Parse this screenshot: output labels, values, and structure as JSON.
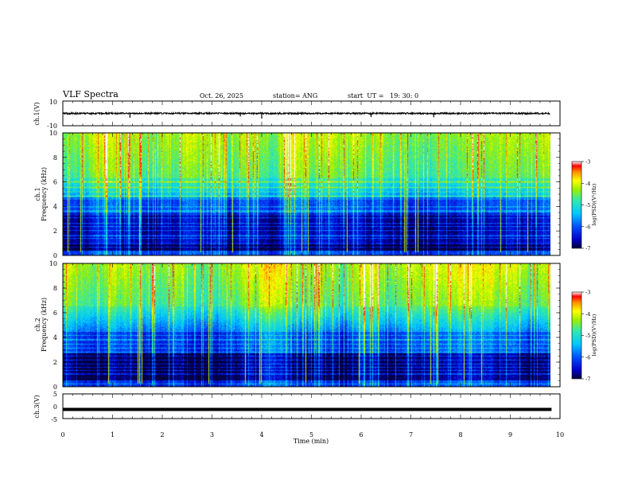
{
  "header": {
    "title": "VLF Spectra",
    "date": "Oct. 26, 2025",
    "station": "station= ANG",
    "start_time": "start  UT =   19: 30: 0"
  },
  "colors": {
    "spectrogram_scale": [
      "#000000",
      "#0000c8",
      "#0050ff",
      "#00c8ff",
      "#30e8b0",
      "#9cf000",
      "#ffff00",
      "#ff9000",
      "#ff0000",
      "#ffffff"
    ]
  },
  "chart_data": [
    {
      "type": "line",
      "name": "ch1-waveform",
      "ylabel": "ch.1(V)",
      "ylim": [
        -10,
        10
      ],
      "yticks": [
        "10",
        "-10"
      ],
      "xlim": [
        0,
        10
      ],
      "level": 0,
      "noise_amplitude": 0.6,
      "spikes": [
        {
          "t": 1.35,
          "dv": -3.5
        },
        {
          "t": 3.57,
          "dv": -2.5
        },
        {
          "t": 4.0,
          "dv": -4.2
        },
        {
          "t": 6.2,
          "dv": -3.0
        },
        {
          "t": 7.46,
          "dv": -3.2
        }
      ]
    },
    {
      "type": "heatmap",
      "name": "ch1-spectrogram",
      "ylabel_top": "ch.1",
      "ylabel": "Frequency (kHz)",
      "ylim": [
        0,
        10
      ],
      "yticks": [
        "0",
        "2",
        "4",
        "6",
        "8",
        "10"
      ],
      "xlim": [
        0,
        9.83
      ],
      "colorbar": {
        "label": "log(PSD)(V²/Hz)",
        "range": [
          -7,
          -3
        ],
        "ticks": [
          "-3",
          "-4",
          "-5",
          "-6",
          "-7"
        ]
      }
    },
    {
      "type": "heatmap",
      "name": "ch2-spectrogram",
      "ylabel_top": "ch.2",
      "ylabel": "Frequency (kHz)",
      "ylim": [
        0,
        10
      ],
      "yticks": [
        "0",
        "2",
        "4",
        "6",
        "8",
        "10"
      ],
      "xlim": [
        0,
        9.83
      ],
      "colorbar": {
        "label": "log(PSD)(V²/Hz)",
        "range": [
          -7,
          -3
        ],
        "ticks": [
          "-3",
          "-4",
          "-5",
          "-6",
          "-7"
        ]
      }
    },
    {
      "type": "line",
      "name": "ch3-waveform",
      "ylabel": "ch.3(V)",
      "ylim": [
        -5,
        5
      ],
      "yticks": [
        "5",
        "0",
        "-5"
      ],
      "xlim": [
        0,
        10
      ],
      "level": -1.3
    }
  ],
  "time_axis": {
    "label": "Time (min)",
    "range": [
      0,
      10
    ],
    "ticks": [
      "0",
      "1",
      "2",
      "3",
      "4",
      "5",
      "6",
      "7",
      "8",
      "9",
      "10"
    ]
  }
}
